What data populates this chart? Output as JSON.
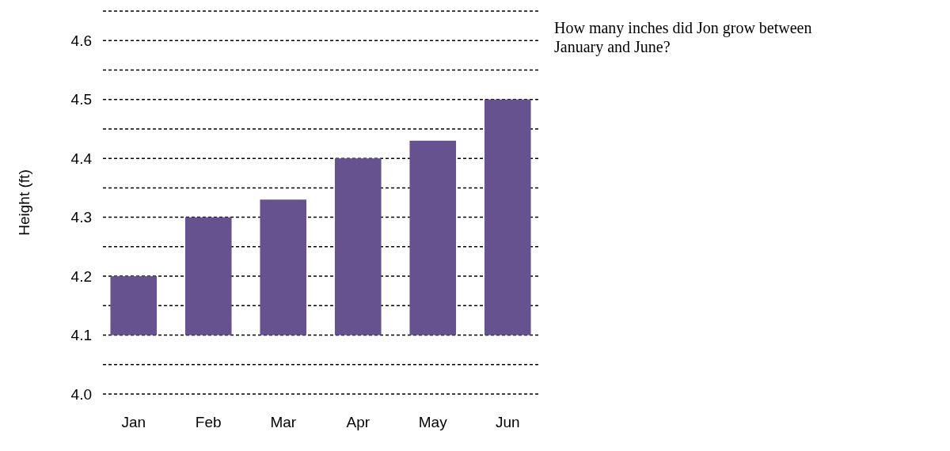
{
  "chart_data": {
    "type": "bar",
    "categories": [
      "Jan",
      "Feb",
      "Mar",
      "Apr",
      "May",
      "Jun"
    ],
    "base": [
      4.1,
      4.1,
      4.1,
      4.1,
      4.1,
      4.1
    ],
    "values": [
      0.1,
      0.2,
      0.23,
      0.3,
      0.33,
      0.4
    ],
    "color": "#65528f",
    "ylabel": "Height (ft)",
    "ylim": [
      4.0,
      4.65
    ],
    "yticks": [
      {
        "value": 4.0,
        "label": "4.0"
      },
      {
        "value": 4.05,
        "label": null
      },
      {
        "value": 4.1,
        "label": "4.1"
      },
      {
        "value": 4.15,
        "label": null
      },
      {
        "value": 4.2,
        "label": "4.2"
      },
      {
        "value": 4.25,
        "label": null
      },
      {
        "value": 4.3,
        "label": "4.3"
      },
      {
        "value": 4.35,
        "label": null
      },
      {
        "value": 4.4,
        "label": "4.4"
      },
      {
        "value": 4.45,
        "label": null
      },
      {
        "value": 4.5,
        "label": "4.5"
      },
      {
        "value": 4.55,
        "label": null
      },
      {
        "value": 4.6,
        "label": "4.6"
      },
      {
        "value": 4.65,
        "label": null
      }
    ],
    "grid": "y",
    "annotations": [
      "How many inches did Jon grow between January and June?"
    ]
  }
}
